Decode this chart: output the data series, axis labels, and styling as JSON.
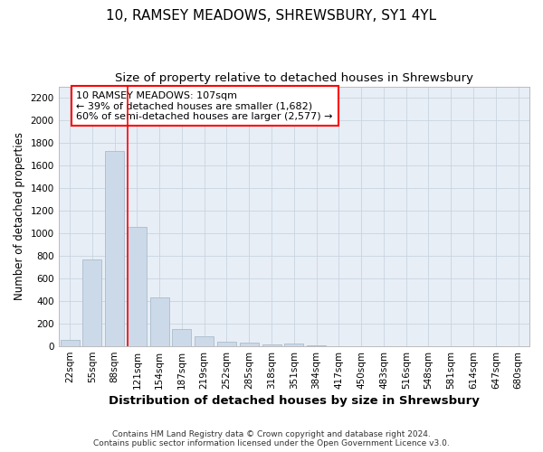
{
  "title": "10, RAMSEY MEADOWS, SHREWSBURY, SY1 4YL",
  "subtitle": "Size of property relative to detached houses in Shrewsbury",
  "xlabel": "Distribution of detached houses by size in Shrewsbury",
  "ylabel": "Number of detached properties",
  "bin_labels": [
    "22sqm",
    "55sqm",
    "88sqm",
    "121sqm",
    "154sqm",
    "187sqm",
    "219sqm",
    "252sqm",
    "285sqm",
    "318sqm",
    "351sqm",
    "384sqm",
    "417sqm",
    "450sqm",
    "483sqm",
    "516sqm",
    "548sqm",
    "581sqm",
    "614sqm",
    "647sqm",
    "680sqm"
  ],
  "bar_values": [
    55,
    770,
    1730,
    1060,
    430,
    150,
    85,
    40,
    30,
    20,
    25,
    5,
    0,
    0,
    0,
    0,
    0,
    0,
    0,
    0,
    0
  ],
  "bar_color": "#ccd9e8",
  "bar_edgecolor": "#aabccc",
  "bar_width": 0.85,
  "ylim": [
    0,
    2300
  ],
  "yticks": [
    0,
    200,
    400,
    600,
    800,
    1000,
    1200,
    1400,
    1600,
    1800,
    2000,
    2200
  ],
  "annotation_text": "10 RAMSEY MEADOWS: 107sqm\n← 39% of detached houses are smaller (1,682)\n60% of semi-detached houses are larger (2,577) →",
  "footer_line1": "Contains HM Land Registry data © Crown copyright and database right 2024.",
  "footer_line2": "Contains public sector information licensed under the Open Government Licence v3.0.",
  "bg_color": "#ffffff",
  "plot_bg_color": "#e8eef6",
  "grid_color": "#c8d4e0",
  "title_fontsize": 11,
  "subtitle_fontsize": 9.5,
  "tick_fontsize": 7.5,
  "ylabel_fontsize": 8.5,
  "xlabel_fontsize": 9.5,
  "annotation_fontsize": 8,
  "footer_fontsize": 6.5
}
